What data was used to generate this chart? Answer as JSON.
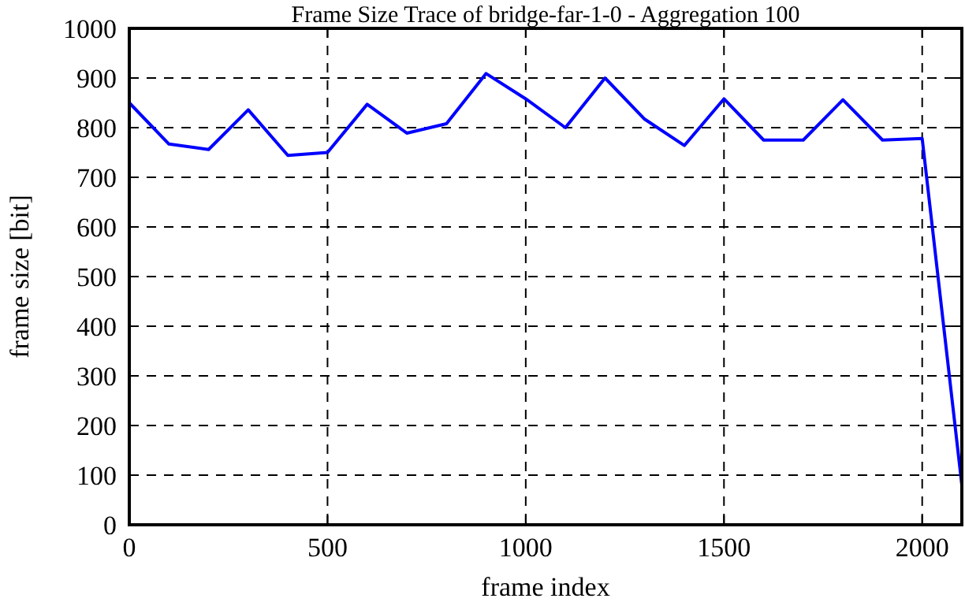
{
  "chart_data": {
    "type": "line",
    "title": "Frame Size Trace of bridge-far-1-0 - Aggregation 100",
    "xlabel": "frame index",
    "ylabel": "frame size [bit]",
    "x": [
      0,
      100,
      200,
      300,
      400,
      500,
      600,
      700,
      800,
      900,
      1000,
      1100,
      1200,
      1300,
      1400,
      1500,
      1600,
      1700,
      1800,
      1900,
      2000,
      2100
    ],
    "series": [
      {
        "color": "#0000ff",
        "values": [
          850,
          767,
          756,
          836,
          744,
          750,
          847,
          789,
          808,
          909,
          858,
          800,
          900,
          817,
          764,
          858,
          775,
          775,
          856,
          775,
          778,
          80
        ]
      }
    ],
    "xlim": [
      0,
      2100
    ],
    "ylim": [
      0,
      1000
    ],
    "xticks": [
      0,
      500,
      1000,
      1500,
      2000
    ],
    "yticks": [
      0,
      100,
      200,
      300,
      400,
      500,
      600,
      700,
      800,
      900,
      1000
    ],
    "grid": true,
    "line_style": "solid",
    "marker": "none"
  }
}
